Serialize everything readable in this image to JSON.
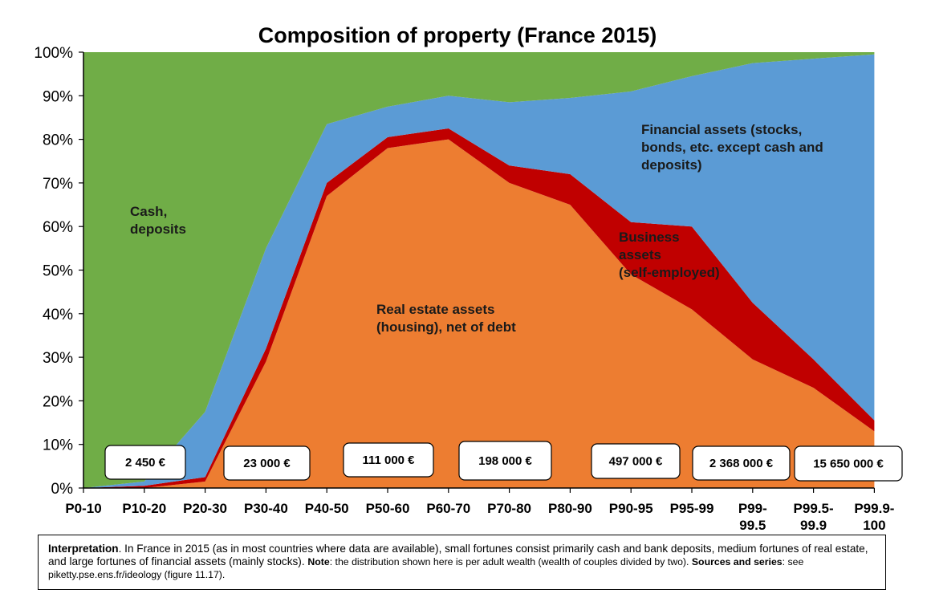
{
  "chart_data": {
    "type": "area",
    "stacked": true,
    "title": "Composition of property (France 2015)",
    "y_ticks": [
      "0%",
      "10%",
      "20%",
      "30%",
      "40%",
      "50%",
      "60%",
      "70%",
      "80%",
      "90%",
      "100%"
    ],
    "ylim": [
      0,
      100
    ],
    "categories": [
      [
        "P0-10"
      ],
      [
        "P10-20"
      ],
      [
        "P20-30"
      ],
      [
        "P30-40"
      ],
      [
        "P40-50"
      ],
      [
        "P50-60"
      ],
      [
        "P60-70"
      ],
      [
        "P70-80"
      ],
      [
        "P80-90"
      ],
      [
        "P90-95"
      ],
      [
        "P95-99"
      ],
      [
        "P99-",
        "99.5"
      ],
      [
        "P99.5-",
        "99.9"
      ],
      [
        "P99.9-",
        "100"
      ]
    ],
    "series": [
      {
        "name": "Real estate assets (housing), net of debt",
        "label_lines": [
          "Real estate assets",
          "(housing), net of debt"
        ],
        "color": "#ED7D31",
        "values": [
          0,
          0,
          1.5,
          29,
          67,
          78,
          80,
          70,
          65,
          49,
          41,
          29.5,
          23,
          13
        ]
      },
      {
        "name": "Business assets (self-employed)",
        "label_lines": [
          "Business",
          "assets",
          "(self-employed)"
        ],
        "color": "#C00000",
        "values": [
          0,
          0.5,
          1,
          3,
          3,
          2.5,
          2.5,
          4,
          7,
          12,
          19,
          13,
          6.5,
          2.5
        ]
      },
      {
        "name": "Financial assets (stocks, bonds, etc. except cash and deposits)",
        "label_lines": [
          "Financial assets (stocks,",
          "bonds, etc. except cash and",
          "deposits)"
        ],
        "color": "#5B9BD5",
        "values": [
          0,
          1,
          15,
          23,
          13.5,
          7,
          7.5,
          14.5,
          17.5,
          30,
          34.5,
          55,
          69,
          84
        ]
      },
      {
        "name": "Cash, deposits",
        "label_lines": [
          "Cash,",
          "deposits"
        ],
        "color": "#70AD47",
        "values": [
          100,
          98.5,
          82.5,
          45,
          16.5,
          12.5,
          10,
          11.5,
          10.5,
          9,
          5.5,
          2.5,
          1.5,
          0.5
        ]
      }
    ],
    "wealth_labels": [
      "2 450 €",
      "23 000 €",
      "111 000 €",
      "198 000 €",
      "497 000 €",
      "2 368 000 €",
      "15 650 000 €"
    ],
    "grid": false,
    "legend": "none (labels inside areas)"
  },
  "note": {
    "lead": "Interpretation",
    "text": ". In France in 2015 (as in most countries where data are available), small fortunes consist primarily cash and bank deposits, medium fortunes of real estate, and large fortunes of financial assets (mainly stocks). ",
    "note_label": "Note",
    "note_text": ": the distribution shown here is per adult wealth (wealth of couples divided by two). ",
    "sources_label": "Sources and series",
    "sources_text": ": see piketty.pse.ens.fr/ideology (figure 11.17)."
  }
}
